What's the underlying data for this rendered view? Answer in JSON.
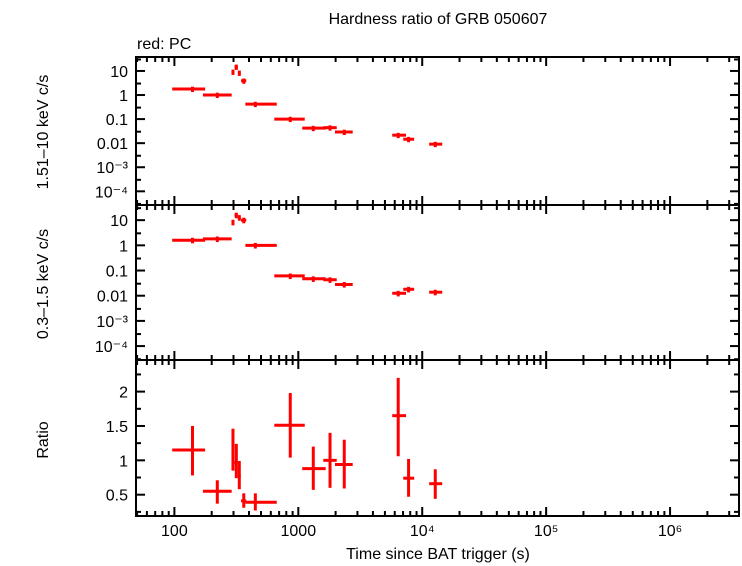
{
  "chart_data": {
    "type": "scatter",
    "title": "Hardness ratio of GRB 050607",
    "legend_note": "red: PC",
    "xlabel": "Time since BAT trigger (s)",
    "xscale": "log",
    "xlim": [
      49,
      3600000
    ],
    "x_ticks": [
      100,
      1000,
      10000,
      100000,
      1000000
    ],
    "x_tick_labels": [
      "100",
      "1000",
      "10⁴",
      "10⁵",
      "10⁶"
    ],
    "series_color": "#ff0000",
    "time": [
      {
        "t": 140,
        "lo": 96,
        "hi": 177
      },
      {
        "t": 222,
        "lo": 170,
        "hi": 290
      },
      {
        "t": 297,
        "lo": 290,
        "hi": 304
      },
      {
        "t": 316,
        "lo": 306,
        "hi": 325
      },
      {
        "t": 334,
        "lo": 326,
        "hi": 343
      },
      {
        "t": 363,
        "lo": 345,
        "hi": 380
      },
      {
        "t": 450,
        "lo": 374,
        "hi": 670
      },
      {
        "t": 861,
        "lo": 640,
        "hi": 1127
      },
      {
        "t": 1321,
        "lo": 1076,
        "hi": 1663
      },
      {
        "t": 1803,
        "lo": 1592,
        "hi": 2042
      },
      {
        "t": 2349,
        "lo": 1977,
        "hi": 2748
      },
      {
        "t": 6400,
        "lo": 5726,
        "hi": 7400
      },
      {
        "t": 7760,
        "lo": 7030,
        "hi": 8610
      },
      {
        "t": 12740,
        "lo": 11380,
        "hi": 14500
      }
    ],
    "panels": [
      {
        "ylabel": "1.51–10 keV c/s",
        "yscale": "log",
        "ylim": [
          2.7e-05,
          38
        ],
        "y_ticks": [
          10,
          1,
          0.1,
          0.01,
          0.001,
          0.0001
        ],
        "y_tick_labels": [
          "10",
          "1",
          "0.1",
          "0.01",
          "10⁻³",
          "10⁻⁴"
        ],
        "values": [
          1.78,
          1.0,
          9.1,
          14.7,
          8.3,
          3.9,
          0.42,
          0.1,
          0.042,
          0.044,
          0.029,
          0.0215,
          0.0146,
          0.0091
        ],
        "yerr_frac": 0.25
      },
      {
        "ylabel": "0.3–1.5 keV c/s",
        "yscale": "log",
        "ylim": [
          2.8e-05,
          40
        ],
        "y_ticks": [
          10,
          1,
          0.1,
          0.01,
          0.001,
          0.0001
        ],
        "y_tick_labels": [
          "10",
          "1",
          "0.1",
          "0.01",
          "10⁻³",
          "10⁻⁴"
        ],
        "values": [
          1.6,
          1.8,
          8.3,
          15.9,
          12.7,
          10,
          1.0,
          0.061,
          0.047,
          0.043,
          0.028,
          0.0125,
          0.018,
          0.0138
        ],
        "yerr_frac": 0.25
      },
      {
        "ylabel": "Ratio",
        "yscale": "linear",
        "ylim": [
          0.19,
          2.46
        ],
        "y_ticks": [
          2,
          1.5,
          1,
          0.5
        ],
        "y_tick_labels": [
          "2",
          "1.5",
          "1",
          "0.5"
        ],
        "values": [
          1.15,
          0.55,
          1.17,
          0.97,
          0.78,
          0.41,
          0.39,
          1.51,
          0.88,
          1.0,
          0.94,
          1.65,
          0.74,
          0.66
        ],
        "yerr_lo": [
          0.78,
          0.37,
          0.85,
          0.74,
          0.58,
          0.31,
          0.27,
          1.04,
          0.57,
          0.6,
          0.59,
          1.06,
          0.47,
          0.44
        ],
        "yerr_hi": [
          1.5,
          0.71,
          1.46,
          1.24,
          0.99,
          0.52,
          0.52,
          1.98,
          1.2,
          1.4,
          1.3,
          2.2,
          1.02,
          0.87
        ]
      }
    ]
  }
}
